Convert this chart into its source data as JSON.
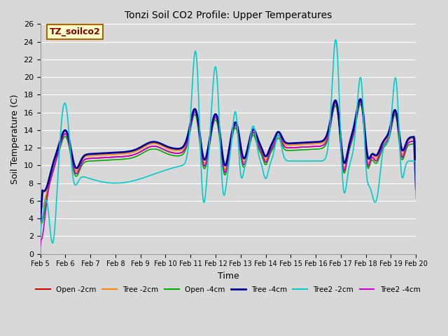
{
  "title": "Tonzi Soil CO2 Profile: Upper Temperatures",
  "xlabel": "Time",
  "ylabel": "Soil Temperature (C)",
  "ylim": [
    0,
    26
  ],
  "yticks": [
    0,
    2,
    4,
    6,
    8,
    10,
    12,
    14,
    16,
    18,
    20,
    22,
    24,
    26
  ],
  "background_color": "#d8d8d8",
  "grid_color": "#ffffff",
  "annotation_box": "TZ_soilco2",
  "annotation_color": "#880000",
  "annotation_bg": "#ffffcc",
  "annotation_border": "#aa6600",
  "series": {
    "Open -2cm": {
      "color": "#cc0000",
      "lw": 1.2
    },
    "Tree -2cm": {
      "color": "#ff8800",
      "lw": 1.2
    },
    "Open -4cm": {
      "color": "#00aa00",
      "lw": 1.2
    },
    "Tree -4cm": {
      "color": "#000099",
      "lw": 2.0
    },
    "Tree2 -2cm": {
      "color": "#00cccc",
      "lw": 1.2
    },
    "Tree2 -4cm": {
      "color": "#cc00cc",
      "lw": 1.2
    }
  },
  "xtick_labels": [
    "Feb 5",
    "Feb 6",
    "Feb 7",
    "Feb 8",
    "Feb 9",
    "Feb 10",
    "Feb 11",
    "Feb 12",
    "Feb 13",
    "Feb 14",
    "Feb 15",
    "Feb 16",
    "Feb 17",
    "Feb 18",
    "Feb 19",
    "Feb 20"
  ],
  "figsize": [
    6.4,
    4.8
  ],
  "dpi": 100
}
